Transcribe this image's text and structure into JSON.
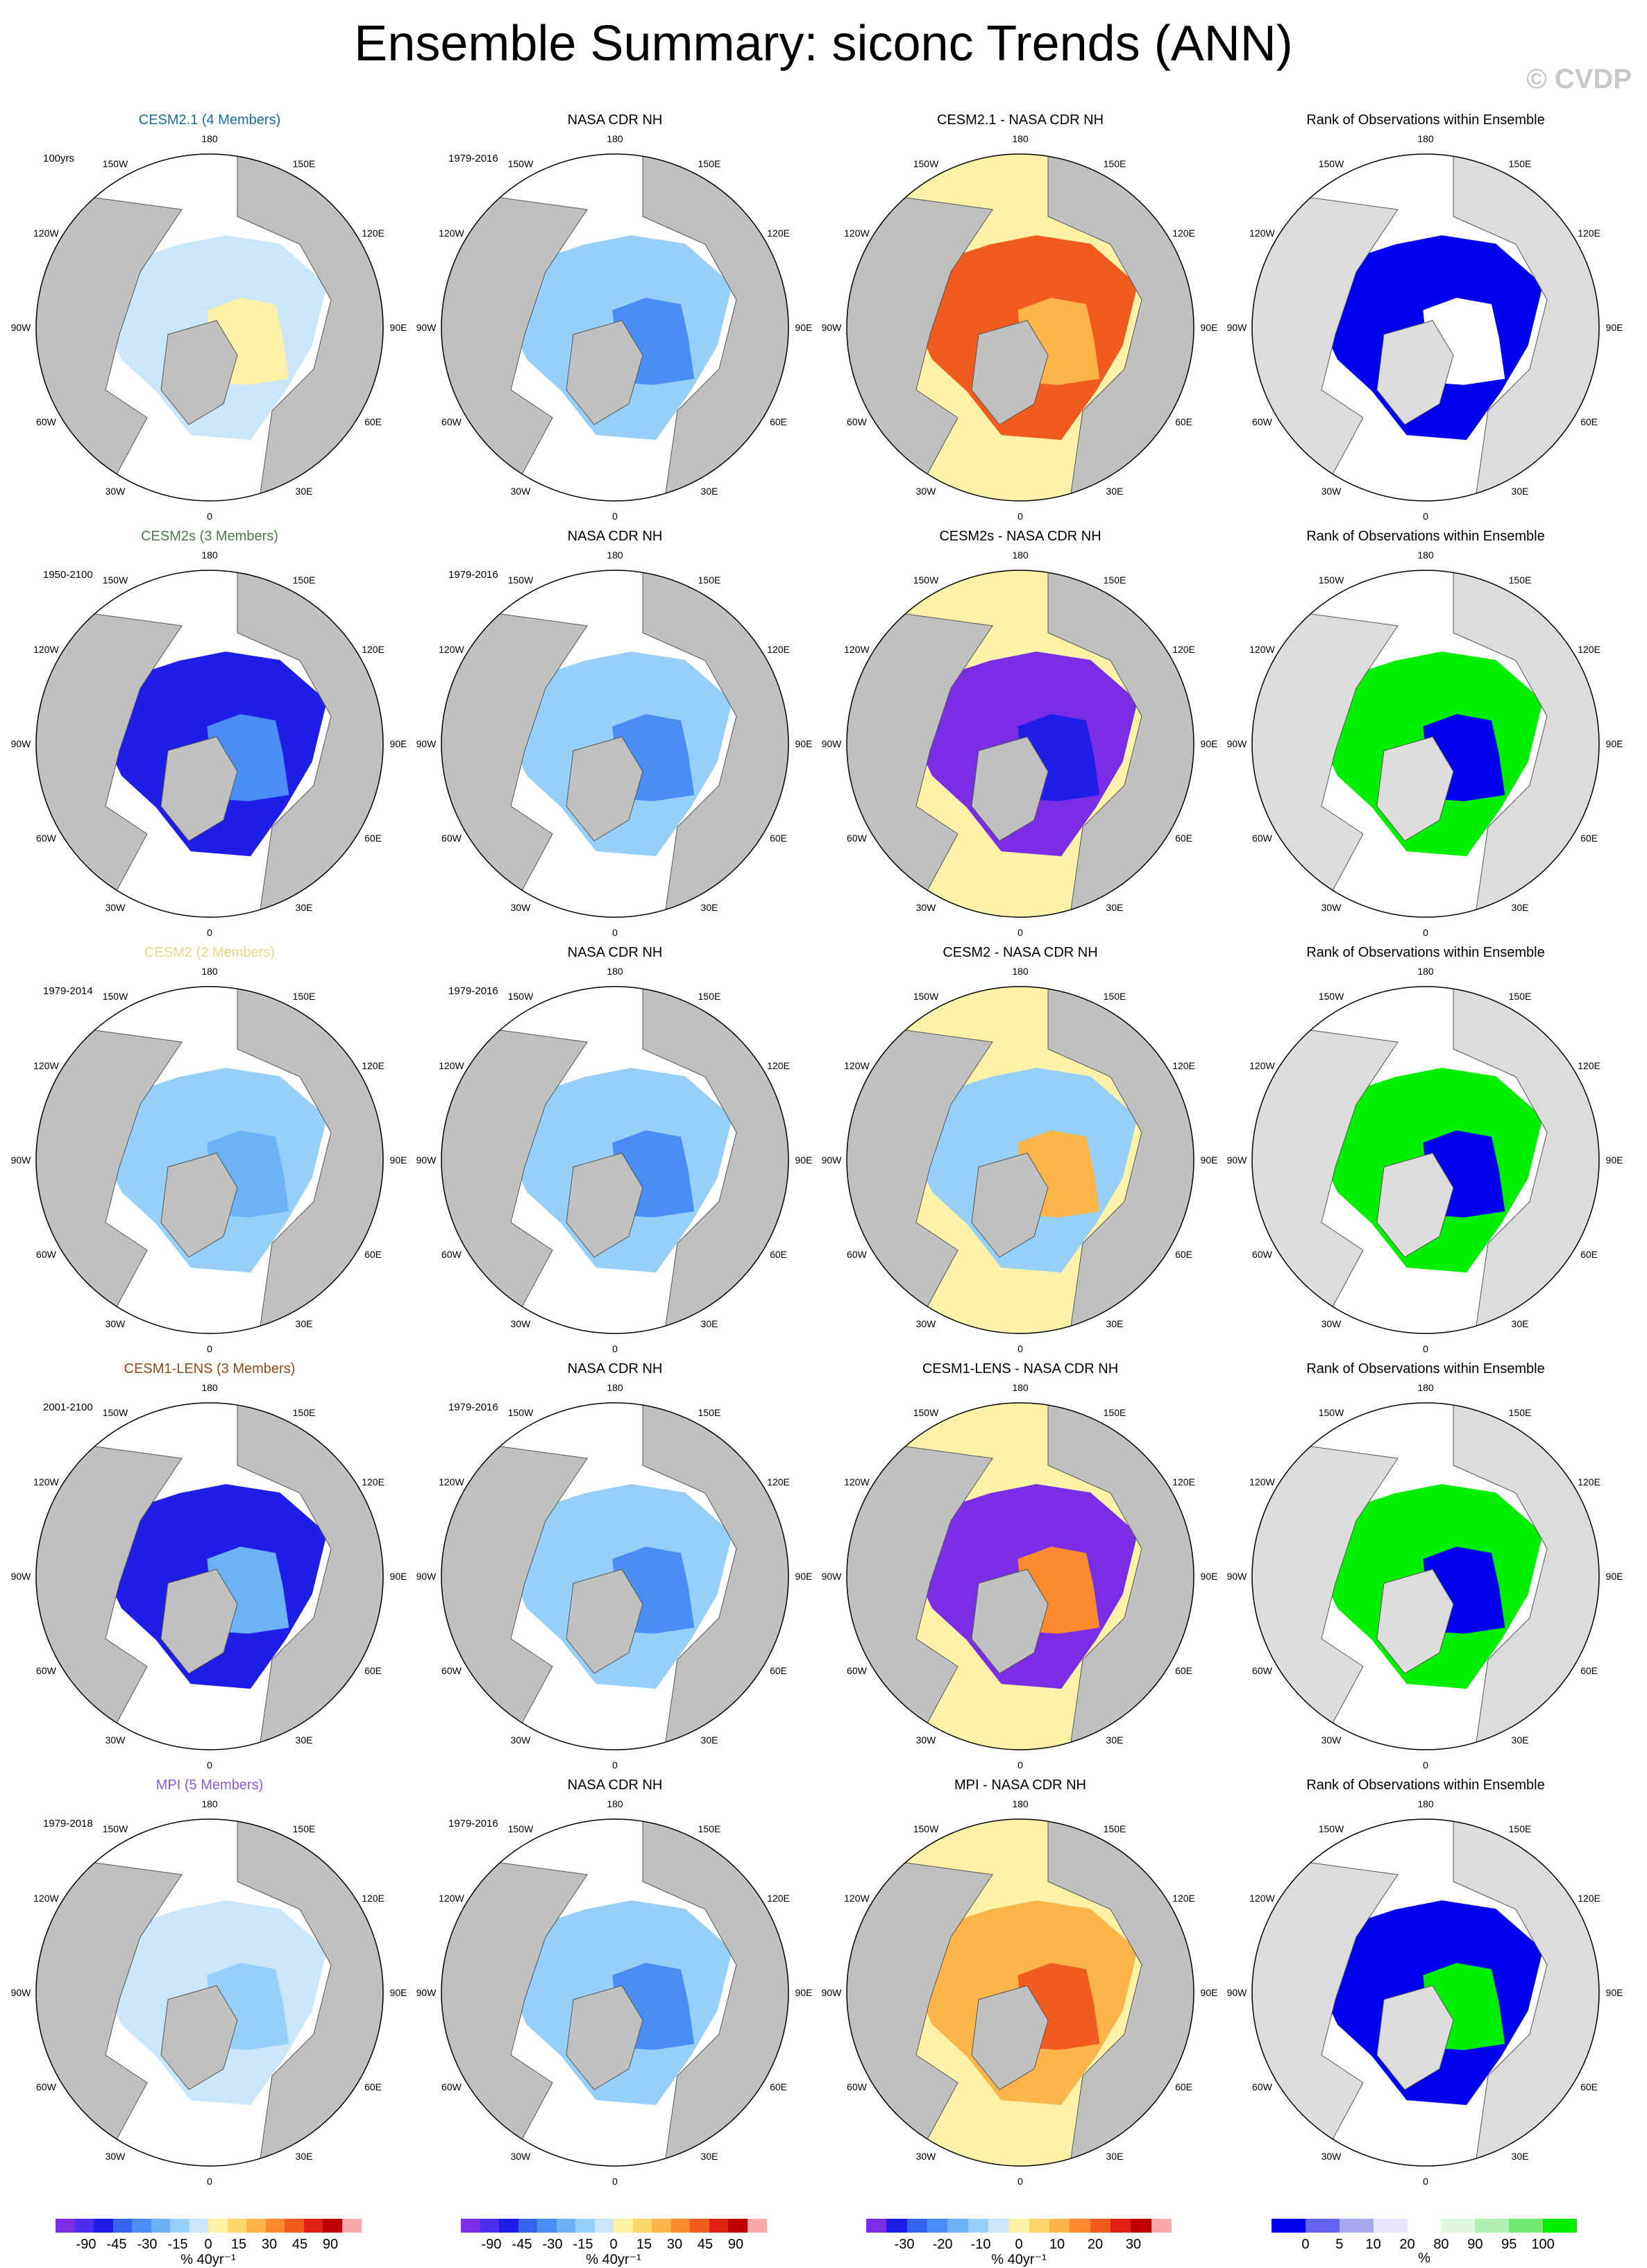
{
  "title": "Ensemble Summary: siconc Trends (ANN)",
  "copyright": "© CVDP",
  "longitude_labels": {
    "lon_180": "180",
    "lon_150E": "150E",
    "lon_120E": "120E",
    "lon_90E": "90E",
    "lon_60E": "60E",
    "lon_30E": "30E",
    "lon_0": "0",
    "lon_30W": "30W",
    "lon_60W": "60W",
    "lon_90W": "90W",
    "lon_120W": "120W",
    "lon_150W": "150W"
  },
  "colors": {
    "land": "#c0c0c0",
    "ocean": "#ffffff",
    "land_rank": "#dcdcdc",
    "trend_scale": [
      "#7b2de6",
      "#4b2ef2",
      "#1e1ee8",
      "#3264f0",
      "#4a8df5",
      "#6cb2f7",
      "#96d0fa",
      "#c9e6fb",
      "#fdf2a8",
      "#fdd66a",
      "#fdb54a",
      "#fb8a2e",
      "#f25b1e",
      "#e02010",
      "#c00000",
      "#f8a8a8"
    ],
    "diff_scale": [
      "#7b2de6",
      "#1e1ee8",
      "#3264f0",
      "#4a8df5",
      "#6cb2f7",
      "#96d0fa",
      "#c9e6fb",
      "#fdf2a8",
      "#fdd66a",
      "#fdb54a",
      "#fb8a2e",
      "#f25b1e",
      "#e02010",
      "#c00000",
      "#f8a8a8"
    ],
    "rank_scale": [
      "#0000ee",
      "#6464ee",
      "#a8a8f0",
      "#e6e6f8",
      "#ffffff",
      "#e0f8e0",
      "#b0f0b0",
      "#70e870",
      "#00ee00"
    ]
  },
  "rows": [
    {
      "ensemble": {
        "title": "CESM2.1 (4 Members)",
        "title_color": "#1c6e8e",
        "period": "100yrs",
        "fill": "#c9e6fb",
        "accent": "#fdf2a8"
      },
      "obs": {
        "title": "NASA CDR NH",
        "period": "1979-2016",
        "fill": "#96d0fa",
        "accent": "#4a8df5"
      },
      "diff": {
        "title": "CESM2.1 - NASA CDR NH",
        "fill": "#f25b1e",
        "accent": "#fdb54a",
        "outer": "#fdf2a8"
      },
      "rank": {
        "title": "Rank of Observations within Ensemble",
        "fill": "#0000ee",
        "accent": "#ffffff"
      }
    },
    {
      "ensemble": {
        "title": "CESM2s (3 Members)",
        "title_color": "#4e7a4e",
        "period": "1950-2100",
        "fill": "#1e1ee8",
        "accent": "#4a8df5"
      },
      "obs": {
        "title": "NASA CDR NH",
        "period": "1979-2016",
        "fill": "#96d0fa",
        "accent": "#4a8df5"
      },
      "diff": {
        "title": "CESM2s - NASA CDR NH",
        "fill": "#7b2de6",
        "accent": "#1e1ee8",
        "outer": "#fdf2a8"
      },
      "rank": {
        "title": "Rank of Observations within Ensemble",
        "fill": "#00ee00",
        "accent": "#0000ee"
      }
    },
    {
      "ensemble": {
        "title": "CESM2 (2 Members)",
        "title_color": "#e6d68a",
        "period": "1979-2014",
        "fill": "#96d0fa",
        "accent": "#6cb2f7"
      },
      "obs": {
        "title": "NASA CDR NH",
        "period": "1979-2016",
        "fill": "#96d0fa",
        "accent": "#4a8df5"
      },
      "diff": {
        "title": "CESM2 - NASA CDR NH",
        "fill": "#96d0fa",
        "accent": "#fdb54a",
        "outer": "#fdf2a8"
      },
      "rank": {
        "title": "Rank of Observations within Ensemble",
        "fill": "#00ee00",
        "accent": "#0000ee"
      }
    },
    {
      "ensemble": {
        "title": "CESM1-LENS (3 Members)",
        "title_color": "#8a4a1a",
        "period": "2001-2100",
        "fill": "#1e1ee8",
        "accent": "#6cb2f7"
      },
      "obs": {
        "title": "NASA CDR NH",
        "period": "1979-2016",
        "fill": "#96d0fa",
        "accent": "#4a8df5"
      },
      "diff": {
        "title": "CESM1-LENS - NASA CDR NH",
        "fill": "#7b2de6",
        "accent": "#fb8a2e",
        "outer": "#fdf2a8"
      },
      "rank": {
        "title": "Rank of Observations within Ensemble",
        "fill": "#00ee00",
        "accent": "#0000ee"
      }
    },
    {
      "ensemble": {
        "title": "MPI (5 Members)",
        "title_color": "#8a5ae0",
        "period": "1979-2018",
        "fill": "#c9e6fb",
        "accent": "#96d0fa"
      },
      "obs": {
        "title": "NASA CDR NH",
        "period": "1979-2016",
        "fill": "#96d0fa",
        "accent": "#4a8df5"
      },
      "diff": {
        "title": "MPI - NASA CDR NH",
        "fill": "#fdb54a",
        "accent": "#f25b1e",
        "outer": "#fdf2a8"
      },
      "rank": {
        "title": "Rank of Observations within Ensemble",
        "fill": "#0000ee",
        "accent": "#00ee00"
      }
    }
  ],
  "colorbars": [
    {
      "ticks": [
        "-90",
        "-45",
        "-30",
        "-15",
        "0",
        "15",
        "30",
        "45",
        "90"
      ],
      "units": "% 40yr⁻¹",
      "scale": "trend_scale"
    },
    {
      "ticks": [
        "-90",
        "-45",
        "-30",
        "-15",
        "0",
        "15",
        "30",
        "45",
        "90"
      ],
      "units": "% 40yr⁻¹",
      "scale": "trend_scale"
    },
    {
      "ticks": [
        "-30",
        "-20",
        "-10",
        "0",
        "10",
        "20",
        "30"
      ],
      "units": "% 40yr⁻¹",
      "scale": "diff_scale"
    },
    {
      "ticks": [
        "0",
        "5",
        "10",
        "20",
        "80",
        "90",
        "95",
        "100"
      ],
      "units": "%",
      "scale": "rank_scale"
    }
  ]
}
